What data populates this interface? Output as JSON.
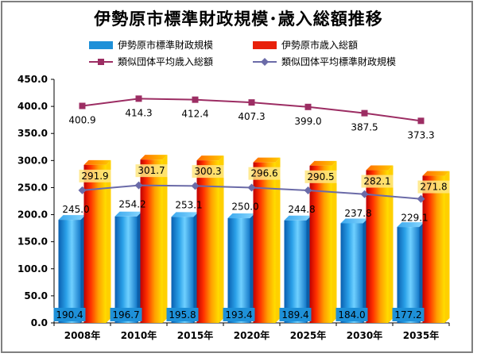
{
  "title": "伊勢原市標準財政規模･歳入総額推移",
  "legend": [
    {
      "label": "伊勢原市標準財政規模",
      "color": "#1e90d8"
    },
    {
      "label": "伊勢原市歳入総額",
      "color": "#e8200a"
    },
    {
      "label": "類似団体平均歳入総額",
      "color": "#9c2d63"
    },
    {
      "label": "類似団体平均標準財政規模",
      "color": "#6b6ba8"
    }
  ],
  "chart_data": {
    "type": "bar",
    "categories": [
      "2008年",
      "2010年",
      "2015年",
      "2020年",
      "2025年",
      "2030年",
      "2035年"
    ],
    "ylim": [
      0,
      450
    ],
    "yticks": [
      "0.0",
      "50.0",
      "100.0",
      "150.0",
      "200.0",
      "250.0",
      "300.0",
      "350.0",
      "400.0",
      "450.0"
    ],
    "series": [
      {
        "name": "伊勢原市標準財政規模",
        "kind": "bar",
        "color": "#1e90d8",
        "values": [
          190.4,
          196.7,
          195.8,
          193.4,
          189.4,
          184.0,
          177.2
        ],
        "labels": [
          "190.4",
          "196.7",
          "195.8",
          "193.4",
          "189.4",
          "184.0",
          "177.2"
        ]
      },
      {
        "name": "伊勢原市歳入総額",
        "kind": "bar",
        "color": "#e8200a",
        "values": [
          291.9,
          301.7,
          300.3,
          296.6,
          290.5,
          282.1,
          271.8
        ],
        "labels": [
          "291.9",
          "301.7",
          "300.3",
          "296.6",
          "290.5",
          "282.1",
          "271.8"
        ]
      },
      {
        "name": "類似団体平均歳入総額",
        "kind": "line",
        "color": "#9c2d63",
        "values": [
          400.9,
          414.3,
          412.4,
          407.3,
          399.0,
          387.5,
          373.3
        ],
        "labels": [
          "400.9",
          "414.3",
          "412.4",
          "407.3",
          "399.0",
          "387.5",
          "373.3"
        ]
      },
      {
        "name": "類似団体平均標準財政規模",
        "kind": "line",
        "color": "#6b6ba8",
        "values": [
          245.0,
          254.2,
          253.1,
          250.0,
          244.8,
          237.8,
          229.1
        ],
        "labels": [
          "245.0",
          "254.2",
          "253.1",
          "250.0",
          "244.8",
          "237.8",
          "229.1"
        ]
      }
    ],
    "grid": false,
    "legend_position": "top"
  }
}
